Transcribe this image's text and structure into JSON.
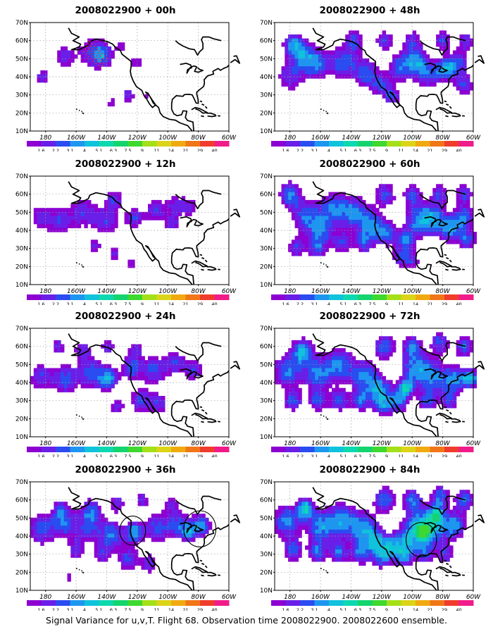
{
  "panels": [
    {
      "title": "2008022900 + 00h",
      "hours": 0
    },
    {
      "title": "2008022900 + 48h",
      "hours": 48
    },
    {
      "title": "2008022900 + 12h",
      "hours": 12
    },
    {
      "title": "2008022900 + 60h",
      "hours": 60
    },
    {
      "title": "2008022900 + 24h",
      "hours": 24
    },
    {
      "title": "2008022900 + 72h",
      "hours": 72
    },
    {
      "title": "2008022900 + 36h",
      "hours": 36
    },
    {
      "title": "2008022900 + 84h",
      "hours": 84
    }
  ],
  "lat_labels": [
    "70N",
    "60N",
    "50N",
    "40N",
    "30N",
    "20N",
    "10N"
  ],
  "lon_labels": [
    "180",
    "160W",
    "140W",
    "120W",
    "100W",
    "80W",
    "60W"
  ],
  "colorbar": {
    "levels": [
      "1.6",
      "2.2",
      "3.1",
      "4",
      "5.1",
      "6.3",
      "7.5",
      "9",
      "11",
      "14",
      "21",
      "29",
      "40"
    ],
    "colors": [
      "#8c00d2",
      "#6a1fe8",
      "#2a4cf0",
      "#1e96f0",
      "#10c2dc",
      "#0ed8b0",
      "#14d46e",
      "#3ed830",
      "#a4e018",
      "#dcd418",
      "#f0aa10",
      "#f07618",
      "#f03c2c",
      "#f01c8a"
    ]
  },
  "map_style": {
    "land_color": "#ffffff",
    "coast_color": "#000000",
    "grid_color": "#9a9a9a"
  },
  "caption": "Signal Variance for u,v,T. Flight 68. Observation time 2008022900. 2008022600 ensemble."
}
